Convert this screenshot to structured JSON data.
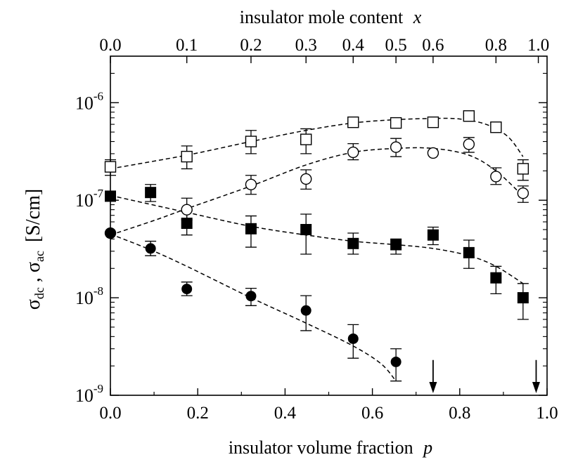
{
  "chart_data": {
    "type": "scatter",
    "title": "",
    "xlabel": "insulator volume fraction",
    "xlabel_var": "p",
    "top_xlabel": "insulator mole content",
    "top_xlabel_var": "x",
    "ylabel_main": "σ",
    "ylabel_sub1": "dc",
    "ylabel_sep": " , ",
    "ylabel_sub2": "ac",
    "ylabel_unit": "[S/cm]",
    "x_scale": "linear",
    "y_scale": "log",
    "xlim": [
      0.0,
      1.0
    ],
    "ylim": [
      1e-09,
      3e-06
    ],
    "x_ticks": [
      "0.0",
      "0.2",
      "0.4",
      "0.6",
      "0.8",
      "1.0"
    ],
    "y_ticks": [
      {
        "base": "10",
        "exp": "-9",
        "value": 1e-09
      },
      {
        "base": "10",
        "exp": "-8",
        "value": 1e-08
      },
      {
        "base": "10",
        "exp": "-7",
        "value": 1e-07
      },
      {
        "base": "10",
        "exp": "-6",
        "value": 1e-06
      }
    ],
    "top_ticks": [
      {
        "label": "0.0",
        "p": 0.0
      },
      {
        "label": "0.1",
        "p": 0.175
      },
      {
        "label": "0.2",
        "p": 0.322
      },
      {
        "label": "0.3",
        "p": 0.448
      },
      {
        "label": "0.4",
        "p": 0.556
      },
      {
        "label": "0.5",
        "p": 0.654
      },
      {
        "label": "0.6",
        "p": 0.739
      },
      {
        "label": "0.8",
        "p": 0.883
      },
      {
        "label": "1.0",
        "p": 0.98
      }
    ],
    "grid": false,
    "series": [
      {
        "marker": "open-square",
        "x": [
          0.0,
          0.175,
          0.322,
          0.448,
          0.556,
          0.654,
          0.739,
          0.821,
          0.883,
          0.945
        ],
        "y": [
          2.2e-07,
          2.8e-07,
          4e-07,
          4.2e-07,
          6.3e-07,
          6.2e-07,
          6.3e-07,
          7.3e-07,
          5.6e-07,
          2.1e-07
        ],
        "err_lo": [
          1.8e-07,
          2.1e-07,
          3e-07,
          3e-07,
          null,
          null,
          null,
          6.5e-07,
          null,
          1.6e-07
        ],
        "err_hi": [
          2.6e-07,
          3.6e-07,
          5.2e-07,
          5.4e-07,
          null,
          null,
          null,
          7.8e-07,
          null,
          2.6e-07
        ],
        "fit_x": [
          0.0,
          0.175,
          0.322,
          0.448,
          0.556,
          0.654,
          0.739,
          0.8,
          0.86,
          0.91,
          0.945
        ],
        "fit_y": [
          2.1e-07,
          2.9e-07,
          4e-07,
          5.2e-07,
          6.2e-07,
          6.7e-07,
          6.9e-07,
          6.8e-07,
          6e-07,
          4.5e-07,
          2.8e-07
        ]
      },
      {
        "marker": "open-circle",
        "x": [
          0.0,
          0.175,
          0.322,
          0.448,
          0.556,
          0.654,
          0.739,
          0.821,
          0.883,
          0.945
        ],
        "y": [
          4.6e-08,
          8e-08,
          1.45e-07,
          1.65e-07,
          3.1e-07,
          3.5e-07,
          3.05e-07,
          3.75e-07,
          1.75e-07,
          1.18e-07
        ],
        "err_lo": [
          null,
          6.3e-08,
          1.15e-07,
          1.3e-07,
          2.6e-07,
          2.8e-07,
          null,
          3.1e-07,
          1.45e-07,
          9.5e-08
        ],
        "err_hi": [
          null,
          1.05e-07,
          1.8e-07,
          2.05e-07,
          3.8e-07,
          4.3e-07,
          null,
          4.4e-07,
          2.15e-07,
          1.4e-07
        ],
        "fit_x": [
          0.0,
          0.1,
          0.175,
          0.322,
          0.448,
          0.556,
          0.654,
          0.739,
          0.821,
          0.883,
          0.945
        ],
        "fit_y": [
          4.4e-08,
          6.2e-08,
          8.2e-08,
          1.4e-07,
          2.3e-07,
          3.1e-07,
          3.4e-07,
          3.4e-07,
          2.9e-07,
          2e-07,
          1.1e-07
        ]
      },
      {
        "marker": "filled-square",
        "x": [
          0.0,
          0.092,
          0.175,
          0.322,
          0.448,
          0.556,
          0.654,
          0.739,
          0.821,
          0.883,
          0.945
        ],
        "y": [
          1.1e-07,
          1.2e-07,
          5.8e-08,
          5.1e-08,
          5e-08,
          3.6e-08,
          3.5e-08,
          4.4e-08,
          2.9e-08,
          1.6e-08,
          1e-08
        ],
        "err_lo": [
          null,
          9.7e-08,
          4.4e-08,
          3.3e-08,
          2.8e-08,
          2.8e-08,
          2.8e-08,
          3.5e-08,
          2e-08,
          1.1e-08,
          6e-09
        ],
        "err_hi": [
          null,
          1.45e-07,
          7.8e-08,
          6.9e-08,
          7.2e-08,
          4.6e-08,
          4e-08,
          5.3e-08,
          3.9e-08,
          2.1e-08,
          1.4e-08
        ],
        "fit_x": [
          0.0,
          0.175,
          0.322,
          0.448,
          0.556,
          0.654,
          0.739,
          0.821,
          0.883,
          0.945
        ],
        "fit_y": [
          1.12e-07,
          7.5e-08,
          5.4e-08,
          4.4e-08,
          3.8e-08,
          3.5e-08,
          3.2e-08,
          2.7e-08,
          2.1e-08,
          1.4e-08
        ]
      },
      {
        "marker": "filled-circle",
        "x": [
          0.0,
          0.092,
          0.175,
          0.322,
          0.448,
          0.556,
          0.654
        ],
        "y": [
          4.6e-08,
          3.2e-08,
          1.23e-08,
          1.04e-08,
          7.4e-09,
          3.8e-09,
          2.2e-09
        ],
        "err_lo": [
          null,
          2.7e-08,
          1.05e-08,
          8.3e-09,
          4.6e-09,
          2.4e-09,
          1.4e-09
        ],
        "err_hi": [
          null,
          3.8e-08,
          1.45e-08,
          1.25e-08,
          1.05e-08,
          5.3e-09,
          3e-09
        ],
        "fit_x": [
          0.0,
          0.092,
          0.175,
          0.322,
          0.448,
          0.556,
          0.62,
          0.654
        ],
        "fit_y": [
          4.5e-08,
          3.1e-08,
          2.1e-08,
          1e-08,
          5.5e-09,
          3.2e-09,
          2.1e-09,
          1.4e-09
        ]
      }
    ],
    "arrows": [
      {
        "x": 0.739,
        "y_from": 2.3e-09,
        "y_to": 1.05e-09
      },
      {
        "x": 0.975,
        "y_from": 2.3e-09,
        "y_to": 1.05e-09
      }
    ]
  }
}
